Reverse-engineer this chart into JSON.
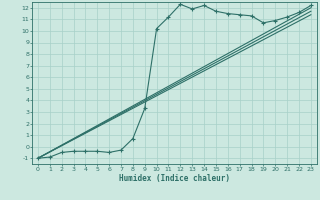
{
  "title": "",
  "xlabel": "Humidex (Indice chaleur)",
  "ylabel": "",
  "xlim": [
    -0.5,
    23.5
  ],
  "ylim": [
    -1.5,
    12.5
  ],
  "xticks": [
    0,
    1,
    2,
    3,
    4,
    5,
    6,
    7,
    8,
    9,
    10,
    11,
    12,
    13,
    14,
    15,
    16,
    17,
    18,
    19,
    20,
    21,
    22,
    23
  ],
  "yticks": [
    -1,
    0,
    1,
    2,
    3,
    4,
    5,
    6,
    7,
    8,
    9,
    10,
    11,
    12
  ],
  "bg_color": "#cce8e0",
  "line_color": "#2e7068",
  "grid_color": "#a8d0c8",
  "curve1_x": [
    0,
    1,
    2,
    3,
    4,
    5,
    6,
    7,
    8,
    9,
    10,
    11,
    12,
    13,
    14,
    15,
    16,
    17,
    18,
    19,
    20,
    21,
    22,
    23
  ],
  "curve1_y": [
    -1.0,
    -0.9,
    -0.5,
    -0.4,
    -0.4,
    -0.4,
    -0.5,
    -0.3,
    0.7,
    3.3,
    10.2,
    11.2,
    12.3,
    11.9,
    12.2,
    11.7,
    11.5,
    11.4,
    11.3,
    10.7,
    10.9,
    11.2,
    11.6,
    12.2
  ],
  "curve2_x": [
    0,
    23
  ],
  "curve2_y": [
    -1.0,
    12.0
  ],
  "curve3_x": [
    0,
    23
  ],
  "curve3_y": [
    -1.0,
    11.4
  ],
  "curve4_x": [
    0,
    23
  ],
  "curve4_y": [
    -1.0,
    11.7
  ],
  "tick_fontsize": 4.5,
  "xlabel_fontsize": 5.5
}
